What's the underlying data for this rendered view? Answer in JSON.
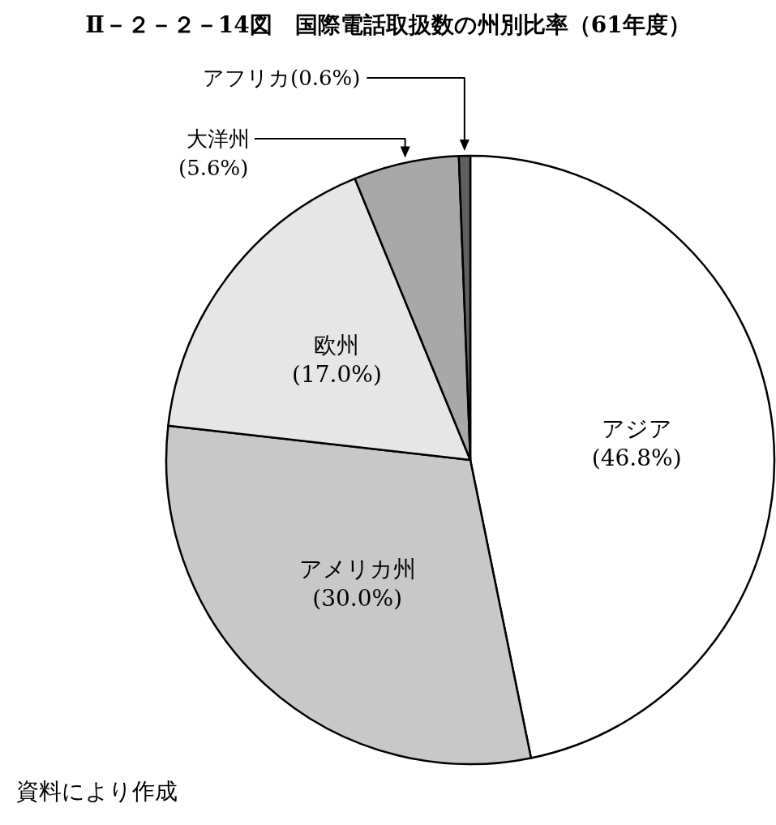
{
  "chart_data": {
    "type": "pie",
    "title": "Ⅱ－２－２－14図　国際電話取扱数の州別比率（61年度）",
    "categories": [
      "アジア",
      "アメリカ州",
      "欧州",
      "大洋州",
      "アフリカ"
    ],
    "values": [
      46.8,
      30.0,
      17.0,
      5.6,
      0.6
    ],
    "value_labels": [
      "(46.8%)",
      "(30.0%)",
      "(17.0%)",
      "(5.6%)",
      "(0.6%)"
    ],
    "colors": [
      "#ffffff",
      "#c8c8c8",
      "#e6e6e6",
      "#a8a8a8",
      "#606060"
    ],
    "annotations": [
      "資料により作成"
    ]
  }
}
